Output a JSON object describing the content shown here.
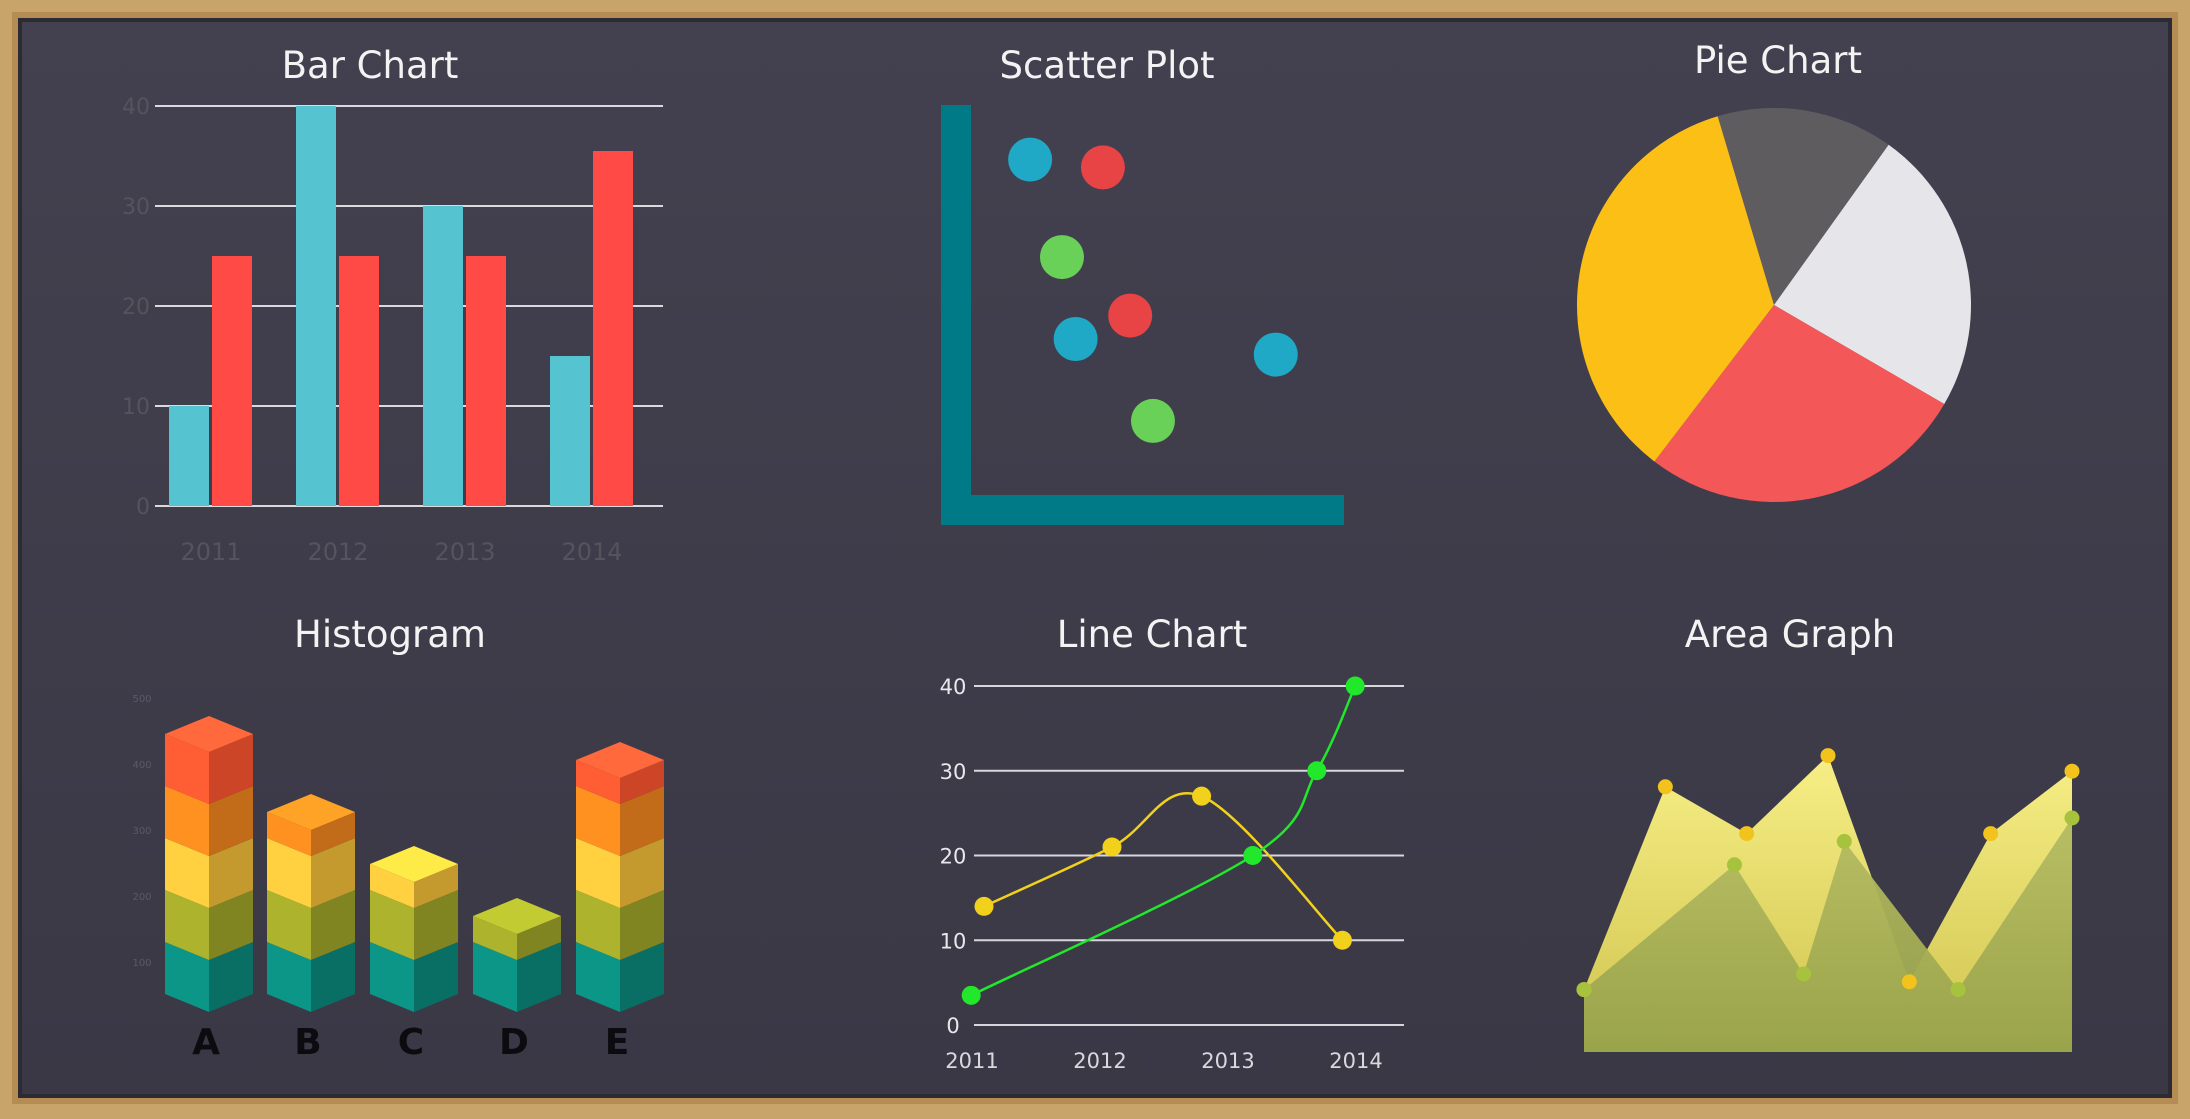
{
  "chart_data": [
    {
      "type": "bar",
      "title": "Bar Chart",
      "categories": [
        "2011",
        "2012",
        "2013",
        "2014"
      ],
      "series": [
        {
          "values": [
            10,
            40,
            30,
            15
          ],
          "color": "#56c4d0"
        },
        {
          "values": [
            25,
            25,
            25,
            35.5
          ],
          "color": "#ff4a45"
        }
      ],
      "yticks": [
        "0",
        "10",
        "20",
        "30",
        "40"
      ],
      "ylim": [
        0,
        40
      ],
      "grid": true
    },
    {
      "type": "scatter",
      "title": "Scatter Plot",
      "points": [
        {
          "x": 1.3,
          "y": 8.6,
          "color": "#1fa9c6"
        },
        {
          "x": 2.9,
          "y": 8.4,
          "color": "#e84345"
        },
        {
          "x": 2.0,
          "y": 6.1,
          "color": "#69d058"
        },
        {
          "x": 3.5,
          "y": 4.6,
          "color": "#e84345"
        },
        {
          "x": 2.3,
          "y": 4.0,
          "color": "#1fa9c6"
        },
        {
          "x": 6.7,
          "y": 3.6,
          "color": "#1fa9c6"
        },
        {
          "x": 4.0,
          "y": 1.9,
          "color": "#69d058"
        }
      ],
      "xlim": [
        0,
        8.2
      ],
      "ylim": [
        0,
        10
      ],
      "axis_color": "#007a86"
    },
    {
      "type": "pie",
      "title": "Pie Chart",
      "slices": [
        {
          "value": 14.5,
          "color": "#5f5c60"
        },
        {
          "value": 23.5,
          "color": "#e6e5ea"
        },
        {
          "value": 27.0,
          "color": "#f45757"
        },
        {
          "value": 35.0,
          "color": "#fcbf16"
        }
      ]
    },
    {
      "type": "bar",
      "style": "stacked-3d",
      "title": "Histogram",
      "categories": [
        "A",
        "B",
        "C",
        "D",
        "E"
      ],
      "values": [
        5,
        3.5,
        2.5,
        1.5,
        4.5
      ],
      "segment_colors": [
        "#0b8b7d",
        "#a0a62a",
        "#f5c13a",
        "#f3861f",
        "#ff5630"
      ],
      "ticks": [
        "100",
        "200",
        "300",
        "400",
        "500"
      ]
    },
    {
      "type": "line",
      "title": "Line Chart",
      "categories": [
        "2011",
        "2012",
        "2013",
        "2014"
      ],
      "yticks": [
        "0",
        "10",
        "20",
        "30",
        "40"
      ],
      "ylim": [
        0,
        40
      ],
      "grid": true,
      "series": [
        {
          "x": [
            2011.0,
            2012.0,
            2012.7,
            2013.8
          ],
          "values": [
            14,
            21,
            27,
            10
          ],
          "color": "#f2d11c"
        },
        {
          "x": [
            2010.9,
            2013.1,
            2013.6,
            2013.9
          ],
          "values": [
            3.5,
            20,
            30,
            40
          ],
          "color": "#22e82b"
        }
      ]
    },
    {
      "type": "area",
      "title": "Area Graph",
      "ylim": [
        0,
        40
      ],
      "series": [
        {
          "x": [
            0,
            1,
            2,
            3,
            4,
            5,
            6
          ],
          "values": [
            8,
            34,
            28,
            38,
            9,
            28,
            36
          ],
          "color": "#f0e56a",
          "point_color": "#f2c21d"
        },
        {
          "x": [
            0,
            1.85,
            2.7,
            3.2,
            4.6,
            6
          ],
          "values": [
            8,
            24,
            10,
            27,
            8,
            30
          ],
          "color": "#a9b551",
          "point_color": "#a7c23c"
        }
      ]
    }
  ]
}
